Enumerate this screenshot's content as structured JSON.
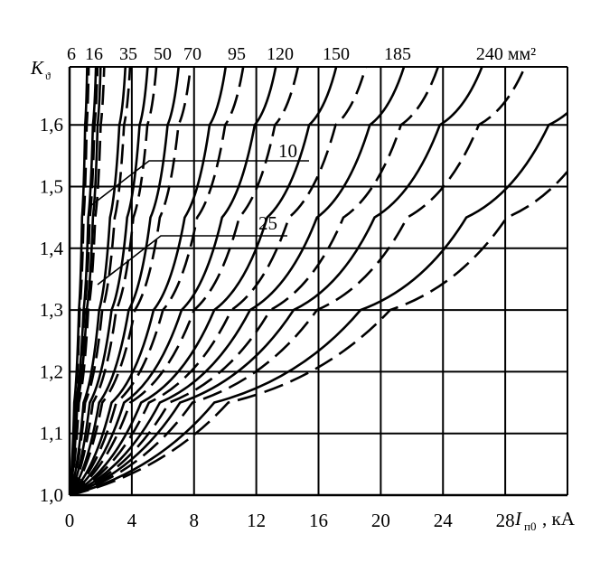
{
  "chart_data": {
    "type": "line",
    "title": "",
    "xlabel": "I",
    "xlabel_subscript": "п0",
    "xlabel_unit": ", кА",
    "ylabel": "K",
    "ylabel_subscript": "ϑ",
    "xlim": [
      0,
      32
    ],
    "ylim": [
      1.0,
      1.7
    ],
    "x_ticks": [
      0,
      4,
      8,
      12,
      16,
      20,
      24,
      28
    ],
    "x_tick_labels": [
      "0",
      "4",
      "8",
      "12",
      "16",
      "20",
      "24",
      "28"
    ],
    "y_ticks": [
      1.0,
      1.1,
      1.2,
      1.3,
      1.4,
      1.5,
      1.6
    ],
    "y_tick_labels": [
      "1,0",
      "1,1",
      "1,2",
      "1,3",
      "1,4",
      "1,5",
      "1,6"
    ],
    "grid": true,
    "cross_sections_label": [
      "6",
      "16",
      "35",
      "50",
      "70",
      "95",
      "120",
      "150",
      "185",
      "240 мм²"
    ],
    "curve_annotations": [
      "10",
      "25"
    ],
    "series": [
      {
        "section": "6",
        "solid_x": [
          0,
          0.3,
          0.6,
          0.8,
          1.0
        ],
        "dashed_x": [
          0,
          0.35,
          0.65,
          0.9,
          1.1
        ]
      },
      {
        "section": "10",
        "solid_x": [
          0,
          0.4,
          0.9,
          1.2,
          1.5
        ],
        "dashed_x": [
          0,
          0.45,
          0.95,
          1.3,
          1.6
        ]
      },
      {
        "section": "16",
        "solid_x": [
          0,
          0.5,
          1.1,
          1.5,
          1.8
        ],
        "dashed_x": [
          0,
          0.6,
          1.2,
          1.65,
          2.0
        ]
      },
      {
        "section": "25",
        "solid_x": [
          0,
          0.9,
          1.9,
          2.6,
          3.2
        ],
        "dashed_x": [
          0,
          1.0,
          2.1,
          2.9,
          3.5
        ]
      },
      {
        "section": "35",
        "solid_x": [
          0,
          1.3,
          2.7,
          3.7,
          4.5
        ],
        "dashed_x": [
          0,
          1.5,
          3.0,
          4.1,
          5.0
        ]
      },
      {
        "section": "50",
        "solid_x": [
          0,
          1.9,
          3.8,
          5.2,
          6.3
        ],
        "dashed_x": [
          0,
          2.1,
          4.2,
          5.8,
          7.0
        ]
      },
      {
        "section": "70",
        "solid_x": [
          0,
          2.7,
          5.4,
          7.4,
          9.0
        ],
        "dashed_x": [
          0,
          3.0,
          6.0,
          8.2,
          10.0
        ]
      },
      {
        "section": "95",
        "solid_x": [
          0,
          3.5,
          7.2,
          9.8,
          11.9
        ],
        "dashed_x": [
          0,
          3.9,
          8.0,
          10.9,
          13.2
        ]
      },
      {
        "section": "120",
        "solid_x": [
          0,
          4.6,
          9.3,
          12.7,
          15.4
        ],
        "dashed_x": [
          0,
          5.1,
          10.4,
          14.1,
          17.1
        ]
      },
      {
        "section": "150",
        "solid_x": [
          0,
          5.8,
          11.6,
          15.9,
          19.3
        ],
        "dashed_x": [
          0,
          6.4,
          12.9,
          17.6,
          21.3
        ]
      },
      {
        "section": "185",
        "solid_x": [
          0,
          7.1,
          14.4,
          19.6,
          23.8
        ],
        "dashed_x": [
          0,
          7.9,
          15.9,
          21.7,
          26.3
        ]
      },
      {
        "section": "240",
        "solid_x": [
          0,
          9.3,
          18.7,
          25.5,
          30.8
        ],
        "dashed_x": [
          0,
          10.2,
          20.6,
          28.1,
          34.0
        ]
      }
    ],
    "series_y": [
      1.0,
      1.15,
      1.3,
      1.45,
      1.6
    ]
  }
}
